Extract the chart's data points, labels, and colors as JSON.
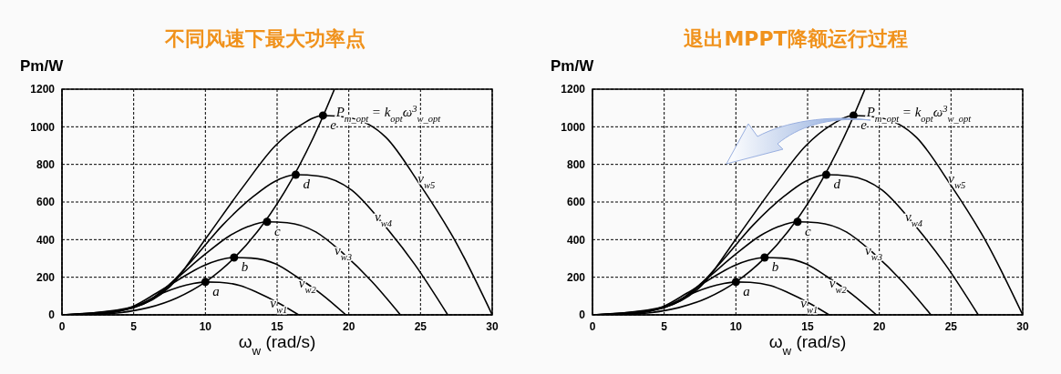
{
  "chart_data": [
    {
      "type": "line",
      "title": "不同风速下最大功率点",
      "xlabel": "ω$_{w}$ (rad/s)",
      "ylabel": "Pm/W",
      "xlim": [
        0,
        30
      ],
      "xticks": [
        0,
        5,
        10,
        15,
        20,
        25,
        30
      ],
      "ylim": [
        0,
        1200
      ],
      "yticks": [
        0,
        200,
        400,
        600,
        800,
        1000,
        1200
      ],
      "grid": true,
      "marker": "none",
      "series": [
        {
          "color": "#000000",
          "x": [
            0,
            2.75,
            4.1,
            5.5,
            6.9,
            8.2,
            9.1,
            10,
            11,
            12.4,
            13.7,
            15.1,
            16.5
          ],
          "values": [
            0,
            7,
            21,
            58,
            112,
            149,
            166,
            175,
            173,
            156,
            116,
            63,
            0
          ]
        },
        {
          "color": "#000000",
          "x": [
            0,
            3.3,
            4.9,
            6.6,
            8.3,
            9.8,
            10.9,
            12,
            13.2,
            14.9,
            16.4,
            18.1,
            19.8
          ],
          "values": [
            0,
            12,
            43,
            116,
            195,
            259,
            290,
            305,
            302,
            271,
            201,
            110,
            0
          ]
        },
        {
          "color": "#000000",
          "x": [
            0,
            3.9,
            5.9,
            7.9,
            9.9,
            11.7,
            13,
            14.3,
            15.7,
            17.7,
            19.6,
            21.6,
            23.6
          ],
          "values": [
            0,
            20,
            69,
            188,
            317,
            421,
            470,
            495,
            490,
            441,
            327,
            178,
            0
          ]
        },
        {
          "color": "#000000",
          "x": [
            0,
            4.5,
            6.7,
            9,
            11.2,
            13.4,
            14.8,
            16.3,
            17.9,
            20.2,
            22.3,
            24.6,
            26.9
          ],
          "values": [
            0,
            30,
            104,
            283,
            477,
            633,
            708,
            745,
            738,
            663,
            492,
            268,
            0
          ]
        },
        {
          "color": "#000000",
          "x": [
            0,
            5,
            7.5,
            10,
            12.6,
            14.9,
            16.6,
            18.2,
            20,
            22.6,
            24.9,
            27.5,
            30
          ],
          "values": [
            0,
            42,
            148,
            403,
            678,
            901,
            1007,
            1060,
            1049,
            943,
            700,
            382,
            0
          ]
        },
        {
          "color": "#000000",
          "x": [
            0,
            2,
            4,
            6,
            8,
            10,
            12,
            14,
            16,
            18,
            19
          ],
          "values": [
            0,
            1,
            11,
            38,
            90,
            175,
            302,
            480,
            717,
            1021,
            1200
          ]
        },
        {
          "type": "scatter",
          "marker": "circle",
          "color": "#000000",
          "x": [
            10,
            12,
            14.3,
            16.3,
            18.2
          ],
          "values": [
            175,
            305,
            495,
            745,
            1060
          ]
        }
      ],
      "annotations": [
        {
          "text": "a",
          "x": 10,
          "y": 175
        },
        {
          "text": "b",
          "x": 12,
          "y": 305
        },
        {
          "text": "c",
          "x": 14.3,
          "y": 495
        },
        {
          "text": "d",
          "x": 16.3,
          "y": 745
        },
        {
          "text": "e",
          "x": 18.2,
          "y": 1060
        },
        {
          "text": "v$_{w1}$",
          "x": 14,
          "y": 110
        },
        {
          "text": "v$_{w2}$",
          "x": 16,
          "y": 220
        },
        {
          "text": "v$_{w3}$",
          "x": 18.5,
          "y": 390
        },
        {
          "text": "v$_{w4}$",
          "x": 21.3,
          "y": 570
        },
        {
          "text": "v$_{w5}$",
          "x": 24.3,
          "y": 773
        },
        {
          "text": "P$_{m_opt}$ = k$_{opt}$ω$^{3}$$_{w_opt}$",
          "x": 18.6,
          "y": 1128
        }
      ]
    },
    {
      "type": "line",
      "title": "退出MPPT降额运行过程",
      "xlabel": "ω$_{w}$ (rad/s)",
      "ylabel": "Pm/W",
      "xlim": [
        0,
        30
      ],
      "xticks": [
        0,
        5,
        10,
        15,
        20,
        25,
        30
      ],
      "ylim": [
        0,
        1200
      ],
      "yticks": [
        0,
        200,
        400,
        600,
        800,
        1000,
        1200
      ],
      "grid": true,
      "marker": "none",
      "series": [
        {
          "color": "#000000",
          "x": [
            0,
            2.75,
            4.1,
            5.5,
            6.9,
            8.2,
            9.1,
            10,
            11,
            12.4,
            13.7,
            15.1,
            16.5
          ],
          "values": [
            0,
            7,
            21,
            58,
            112,
            149,
            166,
            175,
            173,
            156,
            116,
            63,
            0
          ]
        },
        {
          "color": "#000000",
          "x": [
            0,
            3.3,
            4.9,
            6.6,
            8.3,
            9.8,
            10.9,
            12,
            13.2,
            14.9,
            16.4,
            18.1,
            19.8
          ],
          "values": [
            0,
            12,
            43,
            116,
            195,
            259,
            290,
            305,
            302,
            271,
            201,
            110,
            0
          ]
        },
        {
          "color": "#000000",
          "x": [
            0,
            3.9,
            5.9,
            7.9,
            9.9,
            11.7,
            13,
            14.3,
            15.7,
            17.7,
            19.6,
            21.6,
            23.6
          ],
          "values": [
            0,
            20,
            69,
            188,
            317,
            421,
            470,
            495,
            490,
            441,
            327,
            178,
            0
          ]
        },
        {
          "color": "#000000",
          "x": [
            0,
            4.5,
            6.7,
            9,
            11.2,
            13.4,
            14.8,
            16.3,
            17.9,
            20.2,
            22.3,
            24.6,
            26.9
          ],
          "values": [
            0,
            30,
            104,
            283,
            477,
            633,
            708,
            745,
            738,
            663,
            492,
            268,
            0
          ]
        },
        {
          "color": "#000000",
          "x": [
            0,
            5,
            7.5,
            10,
            12.6,
            14.9,
            16.6,
            18.2,
            20,
            22.6,
            24.9,
            27.5,
            30
          ],
          "values": [
            0,
            42,
            148,
            403,
            678,
            901,
            1007,
            1060,
            1049,
            943,
            700,
            382,
            0
          ]
        },
        {
          "color": "#000000",
          "x": [
            0,
            2,
            4,
            6,
            8,
            10,
            12,
            14,
            16,
            18,
            19
          ],
          "values": [
            0,
            1,
            11,
            38,
            90,
            175,
            302,
            480,
            717,
            1021,
            1200
          ]
        },
        {
          "type": "scatter",
          "marker": "circle",
          "color": "#000000",
          "x": [
            10,
            12,
            14.3,
            16.3,
            18.2
          ],
          "values": [
            175,
            305,
            495,
            745,
            1060
          ]
        }
      ],
      "annotations": [
        {
          "text": "a",
          "x": 10,
          "y": 175
        },
        {
          "text": "b",
          "x": 12,
          "y": 305
        },
        {
          "text": "c",
          "x": 14.3,
          "y": 495
        },
        {
          "text": "d",
          "x": 16.3,
          "y": 745
        },
        {
          "text": "e",
          "x": 18.2,
          "y": 1060
        },
        {
          "text": "v$_{w1}$",
          "x": 14,
          "y": 110
        },
        {
          "text": "v$_{w2}$",
          "x": 16,
          "y": 220
        },
        {
          "text": "v$_{w3}$",
          "x": 18.5,
          "y": 390
        },
        {
          "text": "v$_{w4}$",
          "x": 21.3,
          "y": 570
        },
        {
          "text": "v$_{w5}$",
          "x": 24.3,
          "y": 773
        },
        {
          "text": "P$_{m_opt}$ = k$_{opt}$ω$^{3}$$_{w_opt}$",
          "x": 18.6,
          "y": 1128
        }
      ]
    }
  ]
}
